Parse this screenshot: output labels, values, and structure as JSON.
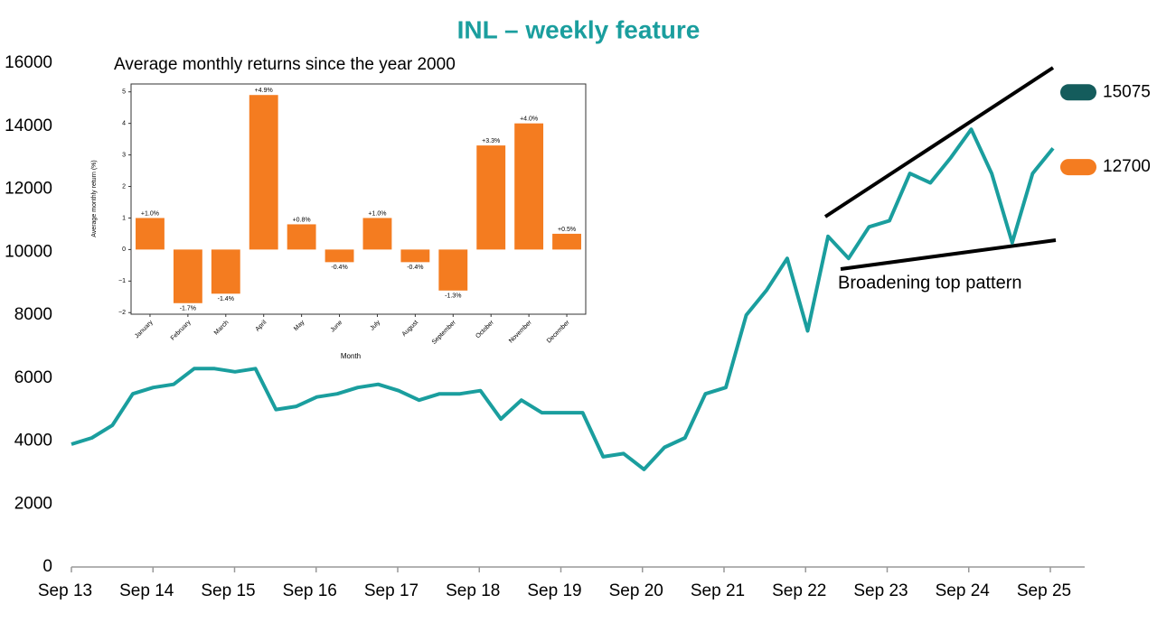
{
  "chart_data": [
    {
      "type": "line",
      "title": "INL – weekly feature",
      "color": "#1a9e9e",
      "xticks": [
        "Sep 13",
        "Sep 14",
        "Sep 15",
        "Sep 16",
        "Sep 17",
        "Sep 18",
        "Sep 19",
        "Sep 20",
        "Sep 21",
        "Sep 22",
        "Sep 23",
        "Sep 24",
        "Sep 25"
      ],
      "values": [
        3900,
        4100,
        4500,
        5500,
        5700,
        5800,
        6300,
        6300,
        6200,
        6300,
        5000,
        5100,
        5400,
        5500,
        5700,
        5800,
        5600,
        5300,
        5500,
        5500,
        5600,
        4700,
        5300,
        4900,
        4900,
        4900,
        3500,
        3600,
        3100,
        3800,
        4100,
        5500,
        5700,
        8000,
        8800,
        9800,
        7500,
        10500,
        9800,
        10800,
        11000,
        12500,
        12200,
        13000,
        13900,
        12500,
        10300,
        12500,
        13300
      ],
      "ylim": [
        0,
        16000
      ],
      "yticks": [
        0,
        2000,
        4000,
        6000,
        8000,
        10000,
        12000,
        14000,
        16000
      ],
      "annotation": "Broadening top pattern",
      "markers": [
        {
          "value": 15075,
          "color": "#145c5c"
        },
        {
          "value": 12700,
          "color": "#f47c20"
        }
      ]
    },
    {
      "type": "bar",
      "title": "Average monthly returns since the year 2000",
      "color": "#f47c20",
      "x_label": "Month",
      "y_label": "Average monthly return (%)",
      "categories": [
        "January",
        "February",
        "March",
        "April",
        "May",
        "June",
        "July",
        "August",
        "September",
        "October",
        "November",
        "December"
      ],
      "values": [
        1.0,
        -1.7,
        -1.4,
        4.9,
        0.8,
        -0.4,
        1.0,
        -0.4,
        -1.3,
        3.3,
        4.0,
        0.5
      ],
      "value_labels": [
        "+1.0%",
        "-1.7%",
        "-1.4%",
        "+4.9%",
        "+0.8%",
        "-0.4%",
        "+1.0%",
        "-0.4%",
        "-1.3%",
        "+3.3%",
        "+4.0%",
        "+0.5%"
      ],
      "ylim": [
        -2.05,
        5.25
      ],
      "yticks": [
        {
          "value": -2,
          "label": "−2"
        },
        {
          "value": -1,
          "label": "−1"
        },
        0,
        1,
        2,
        3,
        4,
        5
      ]
    }
  ]
}
